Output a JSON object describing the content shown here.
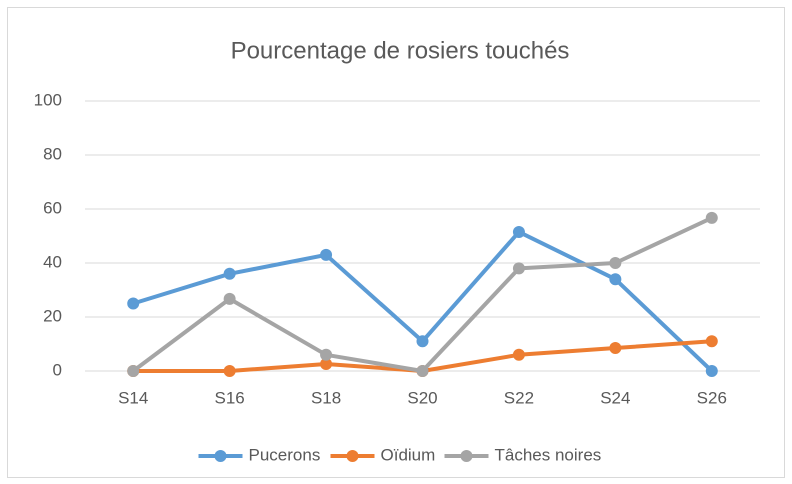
{
  "chart_data": {
    "type": "line",
    "title": "Pourcentage de rosiers touchés",
    "categories": [
      "S14",
      "S16",
      "S18",
      "S20",
      "S22",
      "S24",
      "S26"
    ],
    "series": [
      {
        "name": "Pucerons",
        "color": "#5b9bd5",
        "values": [
          25,
          36,
          43,
          11,
          51.5,
          34,
          0
        ]
      },
      {
        "name": "Oïdium",
        "color": "#ed7d31",
        "values": [
          0,
          0,
          2.6,
          0,
          6,
          8.5,
          11
        ]
      },
      {
        "name": "Tâches noires",
        "color": "#a5a5a5",
        "values": [
          0,
          26.7,
          6,
          0,
          38,
          40,
          56.7
        ]
      }
    ],
    "ylim": [
      0,
      100
    ],
    "yticks": [
      0,
      20,
      40,
      60,
      80,
      100
    ],
    "grid": true,
    "legend": "bottom"
  }
}
